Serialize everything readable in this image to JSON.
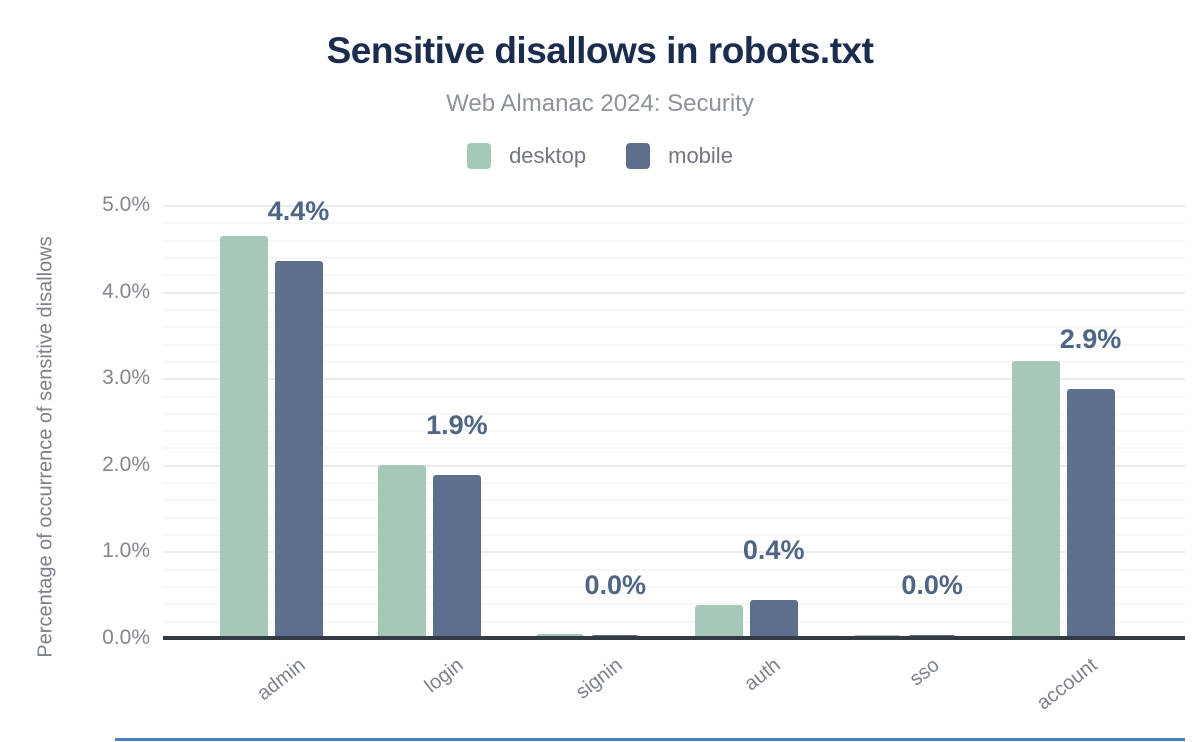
{
  "chart_data": {
    "type": "bar",
    "title": "Sensitive disallows in robots.txt",
    "subtitle": "Web Almanac 2024: Security",
    "ylabel": "Percentage of occurrence of sensitive disallows",
    "xlabel": "",
    "categories": [
      "admin",
      "login",
      "signin",
      "auth",
      "sso",
      "account"
    ],
    "series": [
      {
        "name": "desktop",
        "color": "#a6c9b7",
        "values": [
          4.64,
          2.0,
          0.05,
          0.38,
          0.03,
          3.2
        ]
      },
      {
        "name": "mobile",
        "color": "#5e6f8d",
        "values": [
          4.35,
          1.88,
          0.03,
          0.44,
          0.03,
          2.87
        ]
      }
    ],
    "bar_labels": [
      "4.4%",
      "1.9%",
      "0.0%",
      "0.4%",
      "0.0%",
      "2.9%"
    ],
    "y_ticks": [
      "5.0%",
      "4.0%",
      "3.0%",
      "2.0%",
      "1.0%",
      "0.0%"
    ],
    "ylim": [
      0,
      5
    ],
    "minor_grid_step": 0.2,
    "grid": "on",
    "legend_position": "top"
  },
  "colors": {
    "title": "#1b2c4e",
    "subtitle": "#8d939c",
    "data_label": "#4e6584",
    "axis_line": "#343b44",
    "grid_major": "#ebebeb",
    "grid_minor": "#f6f6f6",
    "bottom_line": "#4a7dbe"
  }
}
